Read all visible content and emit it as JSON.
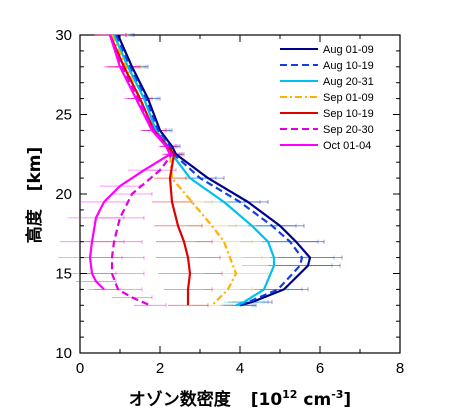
{
  "chart_data": {
    "type": "line",
    "title": "",
    "xlabel": "オゾン数密度",
    "xlabel_unit_open": "[10",
    "xlabel_unit_exp": "12",
    "xlabel_unit_mid": " cm",
    "xlabel_unit_exp2": "-3",
    "xlabel_unit_close": "]",
    "ylabel": "高度",
    "ylabel_unit": "[km]",
    "xlim": [
      0,
      8
    ],
    "ylim": [
      10,
      30
    ],
    "xticks": [
      0,
      2,
      4,
      6,
      8
    ],
    "yticks": [
      10,
      15,
      20,
      25,
      30
    ],
    "legend_position": "top-right",
    "series": [
      {
        "name": "Aug 01-09",
        "color": "#00008b",
        "dash": "solid",
        "points": [
          [
            0.95,
            30
          ],
          [
            1.3,
            28
          ],
          [
            1.7,
            26
          ],
          [
            2.0,
            24
          ],
          [
            2.3,
            23
          ],
          [
            2.4,
            22.5
          ],
          [
            3.2,
            21
          ],
          [
            4.2,
            19.5
          ],
          [
            5.0,
            18
          ],
          [
            5.4,
            17
          ],
          [
            5.75,
            16
          ],
          [
            5.7,
            15.5
          ],
          [
            5.1,
            14
          ],
          [
            4.3,
            13.2
          ],
          [
            4.0,
            13
          ]
        ],
        "err": [
          0.4,
          0.4,
          0.3,
          0.3,
          0.2,
          0.2,
          0.4,
          0.5,
          0.6,
          0.7,
          0.8,
          0.8,
          0.6,
          0.5,
          0.4
        ]
      },
      {
        "name": "Aug 10-19",
        "color": "#1040e0",
        "dash": "dash",
        "points": [
          [
            0.9,
            30
          ],
          [
            1.25,
            28
          ],
          [
            1.65,
            26
          ],
          [
            1.95,
            24
          ],
          [
            2.25,
            23
          ],
          [
            2.35,
            22.5
          ],
          [
            3.0,
            21
          ],
          [
            4.0,
            19.5
          ],
          [
            4.8,
            18
          ],
          [
            5.25,
            17
          ],
          [
            5.55,
            16
          ],
          [
            5.5,
            15.5
          ],
          [
            4.95,
            14
          ],
          [
            4.2,
            13.2
          ],
          [
            3.95,
            13
          ]
        ],
        "err": [
          0.4,
          0.4,
          0.3,
          0.3,
          0.2,
          0.2,
          0.4,
          0.5,
          0.6,
          0.7,
          0.8,
          0.8,
          0.6,
          0.5,
          0.4
        ]
      },
      {
        "name": "Aug 20-31",
        "color": "#00c0f0",
        "dash": "solid",
        "points": [
          [
            0.85,
            30
          ],
          [
            1.2,
            28
          ],
          [
            1.6,
            26
          ],
          [
            1.9,
            24
          ],
          [
            2.2,
            23
          ],
          [
            2.3,
            22.5
          ],
          [
            2.75,
            21
          ],
          [
            3.6,
            19.5
          ],
          [
            4.3,
            18
          ],
          [
            4.7,
            17
          ],
          [
            4.85,
            16
          ],
          [
            4.85,
            15.5
          ],
          [
            4.6,
            14
          ],
          [
            4.1,
            13.2
          ],
          [
            3.9,
            13
          ]
        ],
        "err": [
          0.4,
          0.4,
          0.3,
          0.3,
          0.2,
          0.2,
          0.4,
          0.5,
          0.6,
          0.7,
          0.8,
          0.8,
          0.6,
          0.5,
          0.4
        ]
      },
      {
        "name": "Sep 01-09",
        "color": "#ffb000",
        "dash": "dashdot",
        "points": [
          [
            0.8,
            30
          ],
          [
            1.15,
            28
          ],
          [
            1.5,
            26
          ],
          [
            1.85,
            24
          ],
          [
            2.2,
            23
          ],
          [
            2.25,
            22.5
          ],
          [
            2.3,
            21
          ],
          [
            2.8,
            19.5
          ],
          [
            3.3,
            18
          ],
          [
            3.6,
            17
          ],
          [
            3.75,
            16
          ],
          [
            3.9,
            15
          ],
          [
            3.7,
            14
          ],
          [
            3.3,
            13
          ]
        ],
        "err": [
          0.4,
          0.4,
          0.3,
          0.3,
          0.2,
          0.2,
          0.4,
          0.5,
          0.6,
          0.7,
          0.8,
          0.8,
          0.6,
          0.5
        ]
      },
      {
        "name": "Sep 10-19",
        "color": "#e00000",
        "dash": "solid",
        "points": [
          [
            0.75,
            30
          ],
          [
            1.1,
            28
          ],
          [
            1.5,
            26
          ],
          [
            1.85,
            24
          ],
          [
            2.2,
            23
          ],
          [
            2.35,
            22.5
          ],
          [
            2.25,
            21
          ],
          [
            2.3,
            19.5
          ],
          [
            2.45,
            18
          ],
          [
            2.6,
            17
          ],
          [
            2.7,
            16
          ],
          [
            2.75,
            15
          ],
          [
            2.7,
            14
          ],
          [
            2.7,
            13
          ]
        ],
        "err": [
          0.4,
          0.4,
          0.3,
          0.3,
          0.2,
          0.2,
          0.4,
          0.5,
          0.6,
          0.7,
          0.8,
          0.8,
          0.6,
          0.5
        ]
      },
      {
        "name": "Sep 20-30",
        "color": "#e000e0",
        "dash": "dash",
        "points": [
          [
            0.75,
            30
          ],
          [
            1.05,
            28
          ],
          [
            1.45,
            26
          ],
          [
            1.85,
            24
          ],
          [
            2.2,
            23
          ],
          [
            2.3,
            22.5
          ],
          [
            2.0,
            21.5
          ],
          [
            1.3,
            20
          ],
          [
            1.0,
            18.5
          ],
          [
            0.85,
            17
          ],
          [
            0.8,
            16
          ],
          [
            0.8,
            15
          ],
          [
            0.95,
            14
          ],
          [
            1.3,
            13.5
          ],
          [
            1.75,
            13
          ]
        ],
        "err": [
          0.4,
          0.4,
          0.3,
          0.3,
          0.2,
          0.2,
          0.4,
          0.5,
          0.6,
          0.7,
          0.8,
          0.8,
          0.6,
          0.5,
          0.4
        ]
      },
      {
        "name": "Oct 01-04",
        "color": "#ff00ff",
        "dash": "solid",
        "points": [
          [
            0.75,
            30
          ],
          [
            1.0,
            28
          ],
          [
            1.4,
            26
          ],
          [
            1.8,
            24
          ],
          [
            2.15,
            23
          ],
          [
            2.25,
            22.5
          ],
          [
            1.6,
            21.5
          ],
          [
            1.0,
            20.5
          ],
          [
            0.6,
            19.5
          ],
          [
            0.4,
            18.5
          ],
          [
            0.3,
            17
          ],
          [
            0.25,
            16
          ],
          [
            0.3,
            15
          ],
          [
            0.4,
            14.5
          ],
          [
            0.6,
            14
          ]
        ],
        "err": [
          0.4,
          0.4,
          0.3,
          0.3,
          0.2,
          0.2,
          0.4,
          0.5,
          0.6,
          0.7,
          0.8,
          0.8,
          0.6,
          0.5,
          0.4
        ]
      }
    ]
  }
}
